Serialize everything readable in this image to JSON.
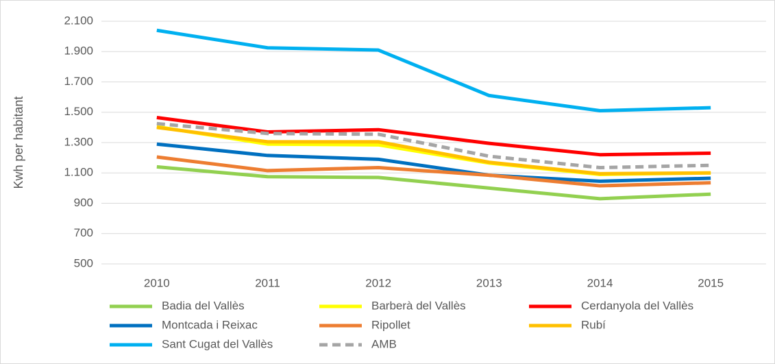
{
  "chart_data": {
    "type": "line",
    "y_label": "Kwh per habitant",
    "categories": [
      "2010",
      "2011",
      "2012",
      "2013",
      "2014",
      "2015"
    ],
    "series": [
      {
        "name": "Badia del Vallès",
        "color": "#92d050",
        "values": [
          1140,
          1075,
          1070,
          1000,
          930,
          960
        ]
      },
      {
        "name": "Barberà del Vallès",
        "color": "#ffff00",
        "values": [
          1405,
          1290,
          1285,
          1165,
          1090,
          1100
        ]
      },
      {
        "name": "Cerdanyola del Vallès",
        "color": "#ff0000",
        "values": [
          1465,
          1370,
          1385,
          1295,
          1220,
          1230
        ]
      },
      {
        "name": "Montcada i Reixac",
        "color": "#0070c0",
        "values": [
          1290,
          1215,
          1190,
          1085,
          1045,
          1065
        ]
      },
      {
        "name": "Ripollet",
        "color": "#ed7d31",
        "values": [
          1205,
          1115,
          1135,
          1085,
          1015,
          1035
        ]
      },
      {
        "name": "Rubí",
        "color": "#ffc000",
        "values": [
          1400,
          1305,
          1305,
          1170,
          1095,
          1100
        ]
      },
      {
        "name": "Sant Cugat del Vallès",
        "color": "#00b0f0",
        "values": [
          2040,
          1925,
          1910,
          1610,
          1510,
          1530
        ]
      },
      {
        "name": "AMB",
        "color": "#a5a5a5",
        "dashed": true,
        "values": [
          1425,
          1360,
          1355,
          1210,
          1135,
          1150
        ]
      }
    ],
    "ylim": [
      500,
      2100
    ],
    "yticks": [
      500,
      700,
      900,
      {
        "value": 1100,
        "label": "1.100"
      },
      {
        "value": 1300,
        "label": "1.300"
      },
      {
        "value": 1500,
        "label": "1.500"
      },
      {
        "value": 1700,
        "label": "1.700"
      },
      {
        "value": 1900,
        "label": "1.900"
      },
      {
        "value": 2100,
        "label": "2.100"
      }
    ],
    "grid": true
  }
}
